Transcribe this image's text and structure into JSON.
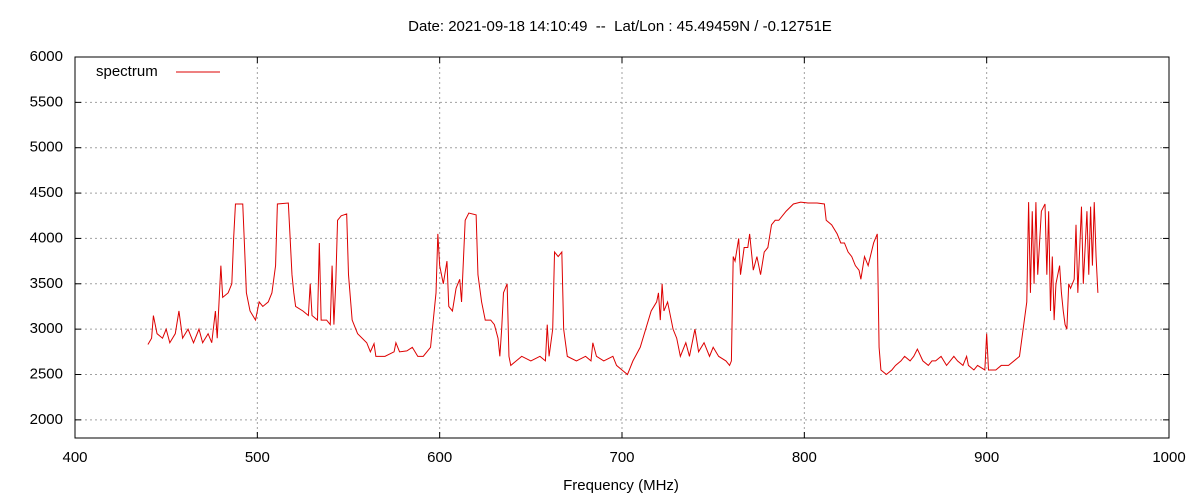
{
  "chart_data": {
    "type": "line",
    "title": "Date: 2021-09-18 14:10:49  --  Lat/Lon : 45.49459N / -0.12751E",
    "x_label": "Frequency (MHz)",
    "xlim": [
      400,
      1000
    ],
    "xticks": [
      400,
      500,
      600,
      700,
      800,
      900,
      1000
    ],
    "ylim": [
      1800,
      6000
    ],
    "yticks": [
      2000,
      2500,
      3000,
      3500,
      4000,
      4500,
      5000,
      5500,
      6000
    ],
    "grid": true,
    "legend": "top-left",
    "series": [
      {
        "name": "spectrum",
        "color": "#dd0000",
        "x": [
          440,
          442,
          443,
          445,
          448,
          450,
          452,
          455,
          457,
          459,
          462,
          465,
          468,
          470,
          473,
          475,
          477,
          478,
          479,
          480,
          481,
          484,
          486,
          487,
          488,
          492,
          493,
          494,
          496,
          499,
          501,
          503,
          506,
          508,
          510,
          511,
          517,
          518,
          519,
          520,
          521,
          525,
          528,
          529,
          530,
          533,
          534,
          535,
          538,
          540,
          541,
          542,
          543,
          544,
          546,
          549,
          550,
          552,
          555,
          560,
          562,
          564,
          565,
          570,
          575,
          576,
          578,
          582,
          585,
          588,
          591,
          595,
          598,
          599,
          600,
          602,
          604,
          605,
          607,
          609,
          611,
          612,
          614,
          616,
          620,
          621,
          623,
          625,
          628,
          630,
          632,
          633,
          634,
          635,
          637,
          638,
          639,
          642,
          645,
          650,
          655,
          658,
          659,
          660,
          662,
          663,
          665,
          667,
          668,
          670,
          675,
          680,
          683,
          684,
          686,
          690,
          695,
          697,
          700,
          703,
          706,
          710,
          713,
          716,
          719,
          720,
          721,
          722,
          723,
          725,
          728,
          730,
          732,
          735,
          737,
          740,
          742,
          745,
          748,
          750,
          753,
          757,
          759,
          760,
          761,
          762,
          764,
          765,
          767,
          769,
          770,
          772,
          774,
          776,
          778,
          780,
          782,
          784,
          786,
          790,
          794,
          798,
          802,
          807,
          811,
          812,
          815,
          818,
          820,
          822,
          824,
          826,
          828,
          830,
          831,
          833,
          835,
          838,
          840,
          841,
          842,
          845,
          848,
          850,
          853,
          855,
          858,
          860,
          862,
          865,
          868,
          870,
          872,
          875,
          878,
          880,
          882,
          884,
          887,
          889,
          890,
          893,
          895,
          899,
          900,
          901,
          905,
          908,
          912,
          918,
          920,
          922,
          923,
          924,
          925,
          926,
          927,
          928,
          930,
          932,
          933,
          934,
          935,
          936,
          937,
          938,
          940,
          941,
          942,
          943,
          944,
          945,
          946,
          948,
          949,
          950,
          952,
          953,
          955,
          956,
          957,
          958,
          959,
          960,
          961
        ],
        "values": [
          2830,
          2900,
          3150,
          2950,
          2900,
          3000,
          2850,
          2950,
          3200,
          2900,
          3000,
          2850,
          3000,
          2850,
          2950,
          2850,
          3200,
          2900,
          3300,
          3700,
          3350,
          3400,
          3500,
          4000,
          4380,
          4380,
          3900,
          3400,
          3200,
          3100,
          3300,
          3250,
          3300,
          3400,
          3700,
          4380,
          4390,
          4000,
          3600,
          3400,
          3250,
          3200,
          3150,
          3500,
          3150,
          3100,
          3950,
          3100,
          3100,
          3050,
          3700,
          3050,
          3500,
          4200,
          4250,
          4270,
          3600,
          3100,
          2950,
          2850,
          2750,
          2840,
          2700,
          2700,
          2750,
          2850,
          2750,
          2760,
          2800,
          2700,
          2700,
          2800,
          3400,
          4050,
          3700,
          3500,
          3750,
          3250,
          3200,
          3450,
          3550,
          3300,
          4200,
          4280,
          4260,
          3600,
          3300,
          3100,
          3100,
          3050,
          2900,
          2700,
          3000,
          3400,
          3500,
          2700,
          2600,
          2650,
          2700,
          2650,
          2700,
          2650,
          3050,
          2700,
          3000,
          3850,
          3800,
          3850,
          3000,
          2700,
          2650,
          2700,
          2650,
          2850,
          2700,
          2650,
          2700,
          2600,
          2550,
          2500,
          2650,
          2800,
          3000,
          3200,
          3300,
          3400,
          3100,
          3500,
          3200,
          3300,
          3000,
          2900,
          2700,
          2850,
          2700,
          3000,
          2750,
          2850,
          2700,
          2800,
          2700,
          2650,
          2600,
          2650,
          3800,
          3750,
          4000,
          3600,
          3900,
          3900,
          4050,
          3650,
          3800,
          3600,
          3850,
          3900,
          4150,
          4200,
          4200,
          4300,
          4380,
          4400,
          4390,
          4390,
          4380,
          4200,
          4150,
          4050,
          3950,
          3950,
          3850,
          3800,
          3700,
          3650,
          3550,
          3800,
          3700,
          3950,
          4050,
          2800,
          2550,
          2500,
          2550,
          2600,
          2650,
          2700,
          2650,
          2700,
          2780,
          2650,
          2600,
          2650,
          2650,
          2700,
          2600,
          2650,
          2700,
          2650,
          2600,
          2700,
          2600,
          2550,
          2600,
          2550,
          2950,
          2550,
          2550,
          2600,
          2600,
          2700,
          3000,
          3300,
          4400,
          3400,
          4300,
          3500,
          4400,
          3600,
          4300,
          4380,
          3600,
          4300,
          3200,
          3800,
          3100,
          3500,
          3700,
          3400,
          3200,
          3050,
          3000,
          3500,
          3450,
          3550,
          4150,
          3400,
          4350,
          3500,
          4300,
          3600,
          4350,
          3700,
          4400,
          3800,
          3400
        ]
      }
    ]
  }
}
